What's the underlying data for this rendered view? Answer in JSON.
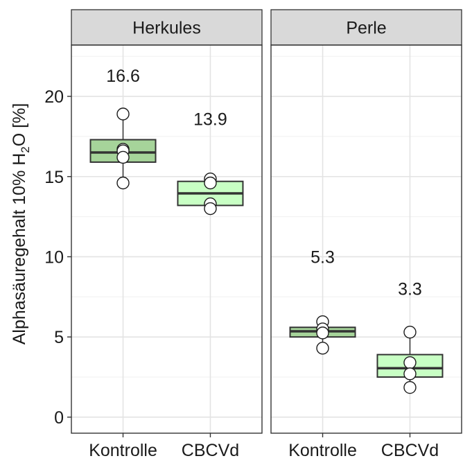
{
  "chart_data": {
    "type": "boxplot",
    "ylabel": "Alphasäuregehalt 10% H",
    "ylabel_sub": "2",
    "ylabel_tail": "O [%]",
    "ylim": [
      -1,
      23.2
    ],
    "yticks": [
      0,
      5,
      10,
      15,
      20
    ],
    "ytick_labels": [
      "0",
      "5",
      "10",
      "15",
      "20"
    ],
    "grid": true,
    "categories": [
      "Kontrolle",
      "CBCVd"
    ],
    "colors": {
      "Kontrolle": "#a6d49a",
      "CBCVd": "#c8ffc4"
    },
    "panels": [
      {
        "title": "Herkules",
        "groups": [
          {
            "category": "Kontrolle",
            "points": [
              18.9,
              16.7,
              16.6,
              16.2,
              14.6
            ],
            "box": {
              "min": 14.6,
              "q1": 15.9,
              "median": 16.5,
              "q3": 17.3,
              "max": 18.9
            },
            "label": "16.6",
            "label_y": 21.3
          },
          {
            "category": "CBCVd",
            "points": [
              14.85,
              14.6,
              13.3,
              13.0
            ],
            "box": {
              "min": 13.0,
              "q1": 13.2,
              "median": 13.95,
              "q3": 14.7,
              "max": 14.85
            },
            "label": "13.9",
            "label_y": 18.6
          }
        ]
      },
      {
        "title": "Perle",
        "groups": [
          {
            "category": "Kontrolle",
            "points": [
              5.95,
              5.5,
              5.25,
              4.3
            ],
            "box": {
              "min": 4.3,
              "q1": 5.0,
              "median": 5.35,
              "q3": 5.6,
              "max": 5.95
            },
            "label": "5.3",
            "label_y": 10.0
          },
          {
            "category": "CBCVd",
            "points": [
              5.3,
              3.4,
              2.7,
              1.85
            ],
            "box": {
              "min": 1.85,
              "q1": 2.5,
              "median": 3.05,
              "q3": 3.9,
              "max": 5.3
            },
            "label": "3.3",
            "label_y": 8.0
          }
        ]
      }
    ]
  }
}
